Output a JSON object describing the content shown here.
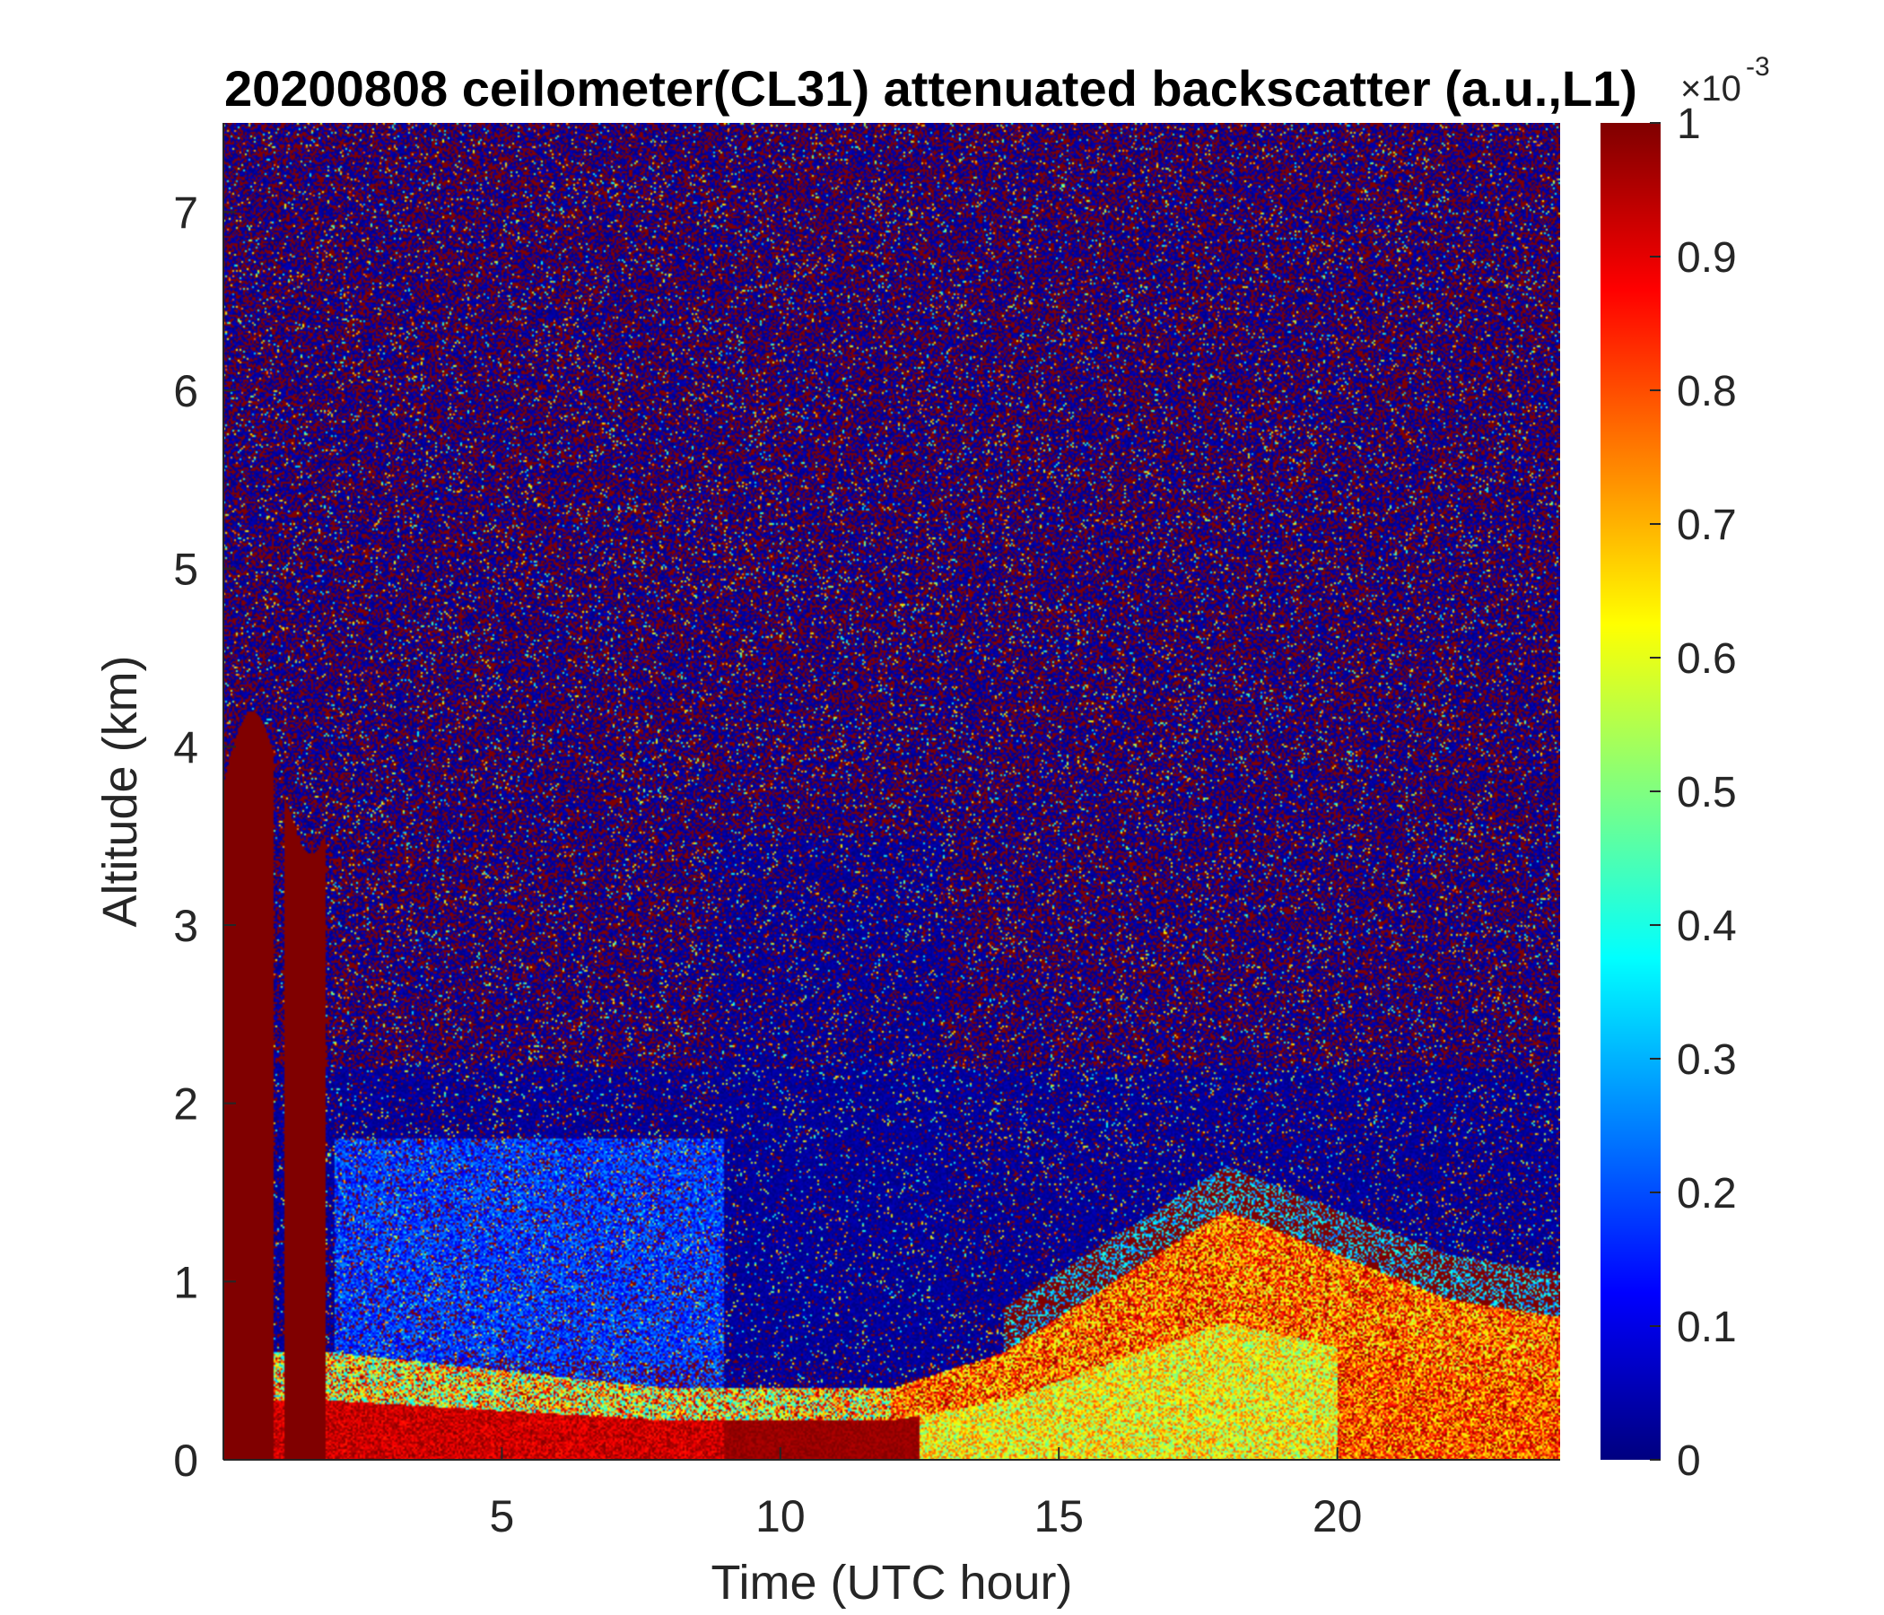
{
  "chart_data": {
    "type": "heatmap",
    "title": "20200808 ceilometer(CL31) attenuated backscatter (a.u.,L1)",
    "xlabel": "Time (UTC hour)",
    "ylabel": "Altitude (km)",
    "xlim": [
      0,
      24
    ],
    "ylim": [
      0,
      7.5
    ],
    "x_ticks": [
      5,
      10,
      15,
      20
    ],
    "y_ticks": [
      0,
      1,
      2,
      3,
      4,
      5,
      6,
      7
    ],
    "colorbar": {
      "colormap": "jet",
      "range": [
        0,
        0.001
      ],
      "tick_labels": [
        "0",
        "0.1",
        "0.2",
        "0.3",
        "0.4",
        "0.5",
        "0.6",
        "0.7",
        "0.8",
        "0.9",
        "1"
      ],
      "exponent_label": "×10",
      "exponent": "-3",
      "ticks": [
        0,
        0.1,
        0.2,
        0.3,
        0.4,
        0.5,
        0.6,
        0.7,
        0.8,
        0.9,
        1.0
      ]
    },
    "grid": false,
    "features": {
      "noise_region_above_km": 2,
      "low_cloud_columns_hours": [
        0.1,
        1.8
      ],
      "boundary_layer_top_km": [
        {
          "hour": 2,
          "km": 0.6
        },
        {
          "hour": 5,
          "km": 0.5
        },
        {
          "hour": 8,
          "km": 0.4
        },
        {
          "hour": 12,
          "km": 0.4
        },
        {
          "hour": 14,
          "km": 0.6
        },
        {
          "hour": 17,
          "km": 1.2
        },
        {
          "hour": 18,
          "km": 1.4
        },
        {
          "hour": 22,
          "km": 0.9
        },
        {
          "hour": 24,
          "km": 0.8
        }
      ]
    }
  },
  "title": "20200808 ceilometer(CL31) attenuated backscatter (a.u.,L1)",
  "xlabel": "Time (UTC hour)",
  "ylabel": "Altitude (km)"
}
